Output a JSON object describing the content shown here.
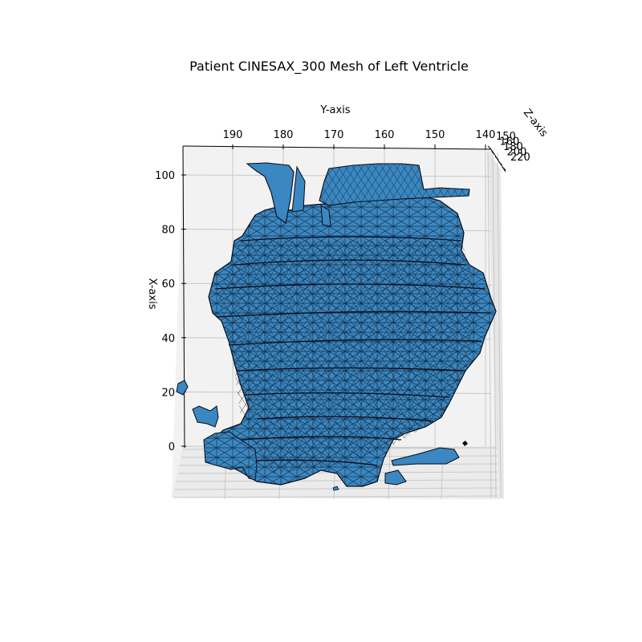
{
  "chart_data": {
    "type": "surface3d",
    "title": "Patient CINESAX_300 Mesh of Left Ventricle",
    "xlabel": "X-axis",
    "ylabel": "Y-axis",
    "zlabel": "Z-axis",
    "x_ticks": [
      "0",
      "20",
      "40",
      "60",
      "80",
      "100"
    ],
    "y_ticks": [
      "190",
      "180",
      "170",
      "160",
      "150",
      "140"
    ],
    "z_ticks": [
      "150",
      "160",
      "180",
      "200",
      "220"
    ],
    "mesh_color": "#3a87c2",
    "edge_color": "#0a0a14",
    "pane_color": "#f2f2f2",
    "grid": true
  }
}
